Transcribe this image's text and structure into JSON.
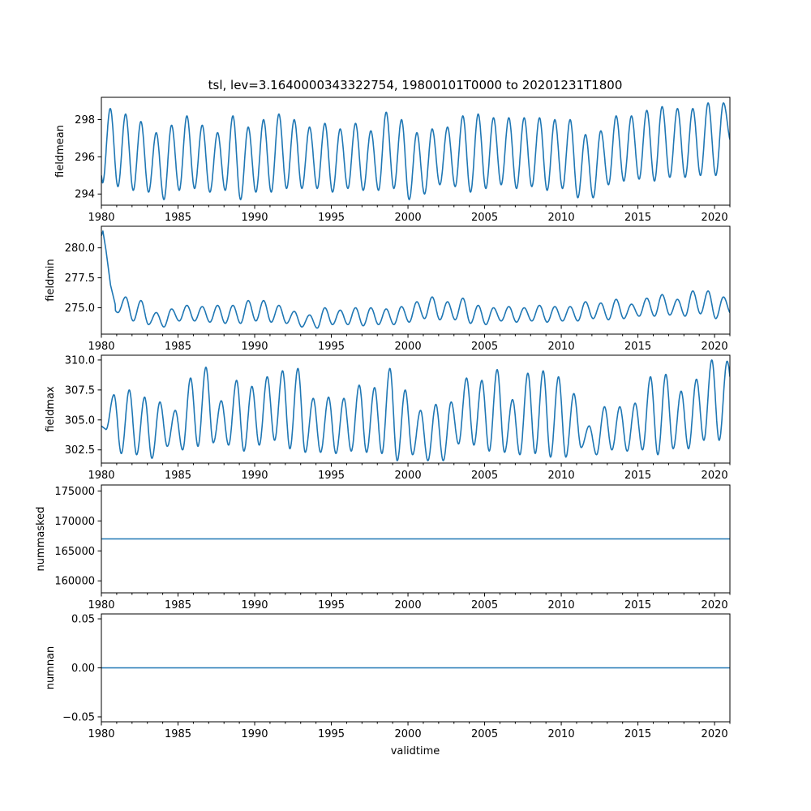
{
  "title": "tsl, lev=3.1640000343322754, 19800101T0000 to 20201231T1800",
  "xlabel": "validtime",
  "colors": {
    "line": "#1f77b4",
    "frame": "#000000"
  },
  "chart_data": [
    {
      "type": "line",
      "ylabel": "fieldmean",
      "xlim": [
        1980.0,
        2021.0
      ],
      "ylim": [
        293.4,
        299.2
      ],
      "xticks": [
        1980,
        1985,
        1990,
        1995,
        2000,
        2005,
        2010,
        2015,
        2020
      ],
      "yticks": [
        294,
        296,
        298
      ],
      "ytick_labels": [
        "294",
        "296",
        "298"
      ],
      "model": {
        "kind": "seasonal",
        "sample_step": 0.02,
        "min_phase": 0.08,
        "max_phase": 0.58
      },
      "series": [
        {
          "years": [
            1980,
            1981,
            1982,
            1983,
            1984,
            1985,
            1986,
            1987,
            1988,
            1989,
            1990,
            1991,
            1992,
            1993,
            1994,
            1995,
            1996,
            1997,
            1998,
            1999,
            2000,
            2001,
            2002,
            2003,
            2004,
            2005,
            2006,
            2007,
            2008,
            2009,
            2010,
            2011,
            2012,
            2013,
            2014,
            2015,
            2016,
            2017,
            2018,
            2019,
            2020
          ],
          "minima": [
            294.6,
            294.4,
            294.2,
            294.1,
            293.7,
            294.2,
            294.3,
            294.1,
            294.2,
            293.7,
            294.1,
            294.1,
            294.3,
            294.3,
            294.3,
            294.1,
            294.3,
            294.2,
            294.2,
            294.3,
            293.7,
            294.0,
            294.5,
            294.4,
            294.1,
            294.3,
            294.5,
            294.3,
            294.4,
            294.2,
            294.3,
            293.8,
            293.8,
            294.5,
            294.7,
            294.8,
            294.7,
            294.9,
            294.9,
            295.0,
            295.0
          ],
          "maxima": [
            298.6,
            298.3,
            297.9,
            297.3,
            297.7,
            298.2,
            297.7,
            297.3,
            298.2,
            297.6,
            298.0,
            298.3,
            298.0,
            297.6,
            297.8,
            297.5,
            297.8,
            297.4,
            298.4,
            298.0,
            297.3,
            297.5,
            297.6,
            298.2,
            298.3,
            298.1,
            298.1,
            298.1,
            298.1,
            298.0,
            298.0,
            297.2,
            297.4,
            298.2,
            298.2,
            298.5,
            298.7,
            298.6,
            298.6,
            298.9,
            298.9
          ],
          "end_value": 296.8
        }
      ]
    },
    {
      "type": "line",
      "ylabel": "fieldmin",
      "xlim": [
        1980.0,
        2021.0
      ],
      "ylim": [
        272.8,
        281.8
      ],
      "xticks": [
        1980,
        1985,
        1990,
        1995,
        2000,
        2005,
        2010,
        2015,
        2020
      ],
      "yticks": [
        275.0,
        277.5,
        280.0
      ],
      "ytick_labels": [
        "275.0",
        "277.5",
        "280.0"
      ],
      "model": {
        "kind": "seasonal",
        "sample_step": 0.02,
        "min_phase": 0.08,
        "max_phase": 0.58
      },
      "series": [
        {
          "start_points": [
            [
              1980.0,
              281.0
            ],
            [
              1980.1,
              281.4
            ],
            [
              1980.3,
              279.8
            ],
            [
              1980.6,
              276.9
            ],
            [
              1980.9,
              275.3
            ]
          ],
          "years": [
            1980,
            1981,
            1982,
            1983,
            1984,
            1985,
            1986,
            1987,
            1988,
            1989,
            1990,
            1991,
            1992,
            1993,
            1994,
            1995,
            1996,
            1997,
            1998,
            1999,
            2000,
            2001,
            2002,
            2003,
            2004,
            2005,
            2006,
            2007,
            2008,
            2009,
            2010,
            2011,
            2012,
            2013,
            2014,
            2015,
            2016,
            2017,
            2018,
            2019,
            2020
          ],
          "minima": [
            274.6,
            274.6,
            273.9,
            273.6,
            273.4,
            273.9,
            273.9,
            273.8,
            273.7,
            273.7,
            273.9,
            273.8,
            273.7,
            273.4,
            273.3,
            273.6,
            273.6,
            273.5,
            273.6,
            273.6,
            273.8,
            274.1,
            274.0,
            274.0,
            273.7,
            273.6,
            273.9,
            273.8,
            273.9,
            273.8,
            273.9,
            273.9,
            274.1,
            274.0,
            274.1,
            274.3,
            274.3,
            274.4,
            274.3,
            274.5,
            274.1
          ],
          "maxima": [
            275.3,
            275.9,
            275.6,
            274.6,
            274.9,
            275.2,
            275.1,
            275.2,
            275.2,
            275.6,
            275.6,
            275.2,
            274.7,
            274.4,
            275.0,
            274.8,
            275.0,
            275.0,
            274.9,
            275.1,
            275.5,
            275.9,
            275.5,
            275.8,
            275.2,
            275.0,
            275.1,
            275.0,
            275.2,
            275.1,
            275.1,
            275.5,
            275.4,
            275.7,
            275.3,
            275.8,
            276.1,
            275.7,
            276.4,
            276.4,
            275.9
          ],
          "end_value": 274.5
        }
      ]
    },
    {
      "type": "line",
      "ylabel": "fieldmax",
      "xlim": [
        1980.0,
        2021.0
      ],
      "ylim": [
        301.4,
        310.4
      ],
      "xticks": [
        1980,
        1985,
        1990,
        1995,
        2000,
        2005,
        2010,
        2015,
        2020
      ],
      "yticks": [
        302.5,
        305.0,
        307.5,
        310.0
      ],
      "ytick_labels": [
        "302.5",
        "305.0",
        "307.5",
        "310.0"
      ],
      "model": {
        "kind": "seasonal",
        "sample_step": 0.02,
        "min_phase": 0.3,
        "max_phase": 0.82,
        "min_width": 0.2
      },
      "series": [
        {
          "years": [
            1980,
            1981,
            1982,
            1983,
            1984,
            1985,
            1986,
            1987,
            1988,
            1989,
            1990,
            1991,
            1992,
            1993,
            1994,
            1995,
            1996,
            1997,
            1998,
            1999,
            2000,
            2001,
            2002,
            2003,
            2004,
            2005,
            2006,
            2007,
            2008,
            2009,
            2010,
            2011,
            2012,
            2013,
            2014,
            2015,
            2016,
            2017,
            2018,
            2019,
            2020
          ],
          "minima": [
            304.2,
            302.2,
            302.1,
            301.8,
            302.8,
            302.5,
            302.8,
            303.1,
            302.9,
            302.4,
            302.9,
            303.3,
            302.6,
            302.3,
            302.3,
            302.2,
            302.4,
            302.3,
            302.2,
            301.6,
            302.1,
            301.6,
            301.6,
            303.0,
            302.9,
            302.4,
            302.3,
            302.1,
            302.2,
            301.9,
            301.9,
            302.7,
            302.1,
            302.5,
            302.4,
            302.5,
            302.1,
            302.6,
            302.6,
            303.3,
            303.3
          ],
          "maxima": [
            307.1,
            307.5,
            306.9,
            306.5,
            305.8,
            308.5,
            309.4,
            306.6,
            308.3,
            307.8,
            308.6,
            309.1,
            309.3,
            306.8,
            306.9,
            306.8,
            307.9,
            307.7,
            309.3,
            307.5,
            305.8,
            306.3,
            306.5,
            308.5,
            308.3,
            309.2,
            306.7,
            308.9,
            309.1,
            308.6,
            307.2,
            304.5,
            306.1,
            306.1,
            306.4,
            308.6,
            308.8,
            307.4,
            308.4,
            310.0,
            309.9
          ],
          "end_value": 305.7
        }
      ]
    },
    {
      "type": "line",
      "ylabel": "nummasked",
      "xlim": [
        1980.0,
        2021.0
      ],
      "ylim": [
        158000,
        176000
      ],
      "xticks": [
        1980,
        1985,
        1990,
        1995,
        2000,
        2005,
        2010,
        2015,
        2020
      ],
      "yticks": [
        160000,
        165000,
        170000,
        175000
      ],
      "ytick_labels": [
        "160000",
        "165000",
        "170000",
        "175000"
      ],
      "model": {
        "kind": "constant"
      },
      "series": [
        {
          "value": 167000
        }
      ]
    },
    {
      "type": "line",
      "ylabel": "numnan",
      "xlim": [
        1980.0,
        2021.0
      ],
      "ylim": [
        -0.055,
        0.055
      ],
      "xticks": [
        1980,
        1985,
        1990,
        1995,
        2000,
        2005,
        2010,
        2015,
        2020
      ],
      "yticks": [
        -0.05,
        0.0,
        0.05
      ],
      "ytick_labels": [
        "−0.05",
        "0.00",
        "0.05"
      ],
      "model": {
        "kind": "constant"
      },
      "series": [
        {
          "value": 0.0
        }
      ]
    }
  ]
}
